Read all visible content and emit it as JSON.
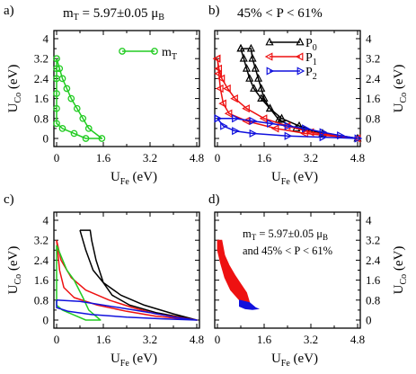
{
  "colors": {
    "green": "#22cc22",
    "black": "#000000",
    "red": "#ee1111",
    "blue": "#1111dd"
  },
  "chart_data": [
    {
      "panel": "a)",
      "type": "line",
      "caption": "m_T = 5.97±0.05 μ_B",
      "xlabel": "U_Fe (eV)",
      "ylabel": "U_Co (eV)",
      "xlim": [
        0,
        4.8
      ],
      "ylim": [
        0,
        4
      ],
      "xticks": [
        "0",
        "1.6",
        "3.2",
        "4.8"
      ],
      "yticks": [
        "0",
        "0.8",
        "1.6",
        "2.4",
        "3.2",
        "4"
      ],
      "legend_position": "top-right",
      "series": [
        {
          "name": "m_T",
          "color": "green",
          "marker": "circle",
          "points": [
            [
              0.0,
              3.2
            ],
            [
              0.1,
              2.8
            ],
            [
              0.2,
              2.4
            ],
            [
              0.35,
              2.0
            ],
            [
              0.5,
              1.6
            ],
            [
              0.7,
              1.2
            ],
            [
              0.9,
              0.8
            ],
            [
              1.1,
              0.4
            ],
            [
              1.55,
              0.0
            ],
            [
              1.0,
              0.0
            ],
            [
              0.6,
              0.2
            ],
            [
              0.2,
              0.4
            ],
            [
              0.0,
              0.6
            ],
            [
              0.0,
              1.2
            ],
            [
              0.0,
              1.8
            ],
            [
              0.0,
              2.4
            ],
            [
              0.0,
              2.8
            ],
            [
              0.0,
              3.2
            ]
          ]
        }
      ]
    },
    {
      "panel": "b)",
      "type": "line",
      "caption": "45% < P < 61%",
      "xlabel": "U_Fe (eV)",
      "ylabel": "U_Co (eV)",
      "xlim": [
        0,
        4.8
      ],
      "ylim": [
        0,
        4
      ],
      "xticks": [
        "0",
        "1.6",
        "3.2",
        "4.8"
      ],
      "yticks": [
        "0",
        "0.8",
        "1.6",
        "2.4",
        "3.2",
        "4"
      ],
      "legend_position": "top-right",
      "series": [
        {
          "name": "P_0",
          "color": "black",
          "marker": "triangle-up",
          "points": [
            [
              0.8,
              3.6
            ],
            [
              0.9,
              3.2
            ],
            [
              1.0,
              2.8
            ],
            [
              1.1,
              2.4
            ],
            [
              1.25,
              2.0
            ],
            [
              1.5,
              1.6
            ],
            [
              1.8,
              1.2
            ],
            [
              2.2,
              0.8
            ],
            [
              2.8,
              0.5
            ],
            [
              3.6,
              0.2
            ],
            [
              4.8,
              0.0
            ],
            [
              2.7,
              0.4
            ],
            [
              2.1,
              0.75
            ],
            [
              1.8,
              1.2
            ],
            [
              1.6,
              1.6
            ],
            [
              1.5,
              2.0
            ],
            [
              1.4,
              2.4
            ],
            [
              1.3,
              2.8
            ],
            [
              1.2,
              3.2
            ],
            [
              1.15,
              3.6
            ],
            [
              0.8,
              3.6
            ]
          ]
        },
        {
          "name": "P_1",
          "color": "red",
          "marker": "triangle-left",
          "points": [
            [
              0.0,
              3.2
            ],
            [
              0.05,
              2.8
            ],
            [
              0.15,
              2.4
            ],
            [
              0.35,
              2.0
            ],
            [
              0.6,
              1.6
            ],
            [
              1.0,
              1.2
            ],
            [
              1.6,
              0.8
            ],
            [
              2.4,
              0.5
            ],
            [
              3.2,
              0.25
            ],
            [
              4.8,
              0.0
            ],
            [
              3.0,
              0.2
            ],
            [
              2.0,
              0.4
            ],
            [
              1.0,
              0.7
            ],
            [
              0.4,
              1.0
            ],
            [
              0.2,
              1.4
            ],
            [
              0.1,
              2.0
            ],
            [
              0.05,
              2.6
            ],
            [
              0.0,
              3.2
            ]
          ]
        },
        {
          "name": "P_2",
          "color": "blue",
          "marker": "triangle-right",
          "points": [
            [
              0.0,
              0.8
            ],
            [
              0.6,
              0.8
            ],
            [
              1.2,
              0.7
            ],
            [
              1.8,
              0.6
            ],
            [
              2.4,
              0.5
            ],
            [
              3.0,
              0.4
            ],
            [
              3.6,
              0.25
            ],
            [
              4.2,
              0.12
            ],
            [
              4.8,
              0.0
            ],
            [
              3.6,
              0.05
            ],
            [
              2.4,
              0.1
            ],
            [
              1.2,
              0.2
            ],
            [
              0.6,
              0.3
            ],
            [
              0.2,
              0.5
            ],
            [
              0.0,
              0.8
            ]
          ]
        }
      ]
    },
    {
      "panel": "c)",
      "type": "line",
      "xlabel": "U_Fe (eV)",
      "ylabel": "U_Co (eV)",
      "xlim": [
        0,
        4.8
      ],
      "ylim": [
        0,
        4
      ],
      "xticks": [
        "0",
        "1.6",
        "3.2",
        "4.8"
      ],
      "yticks": [
        "0",
        "0.8",
        "1.6",
        "2.4",
        "3.2",
        "4"
      ],
      "series": [
        {
          "color": "black",
          "points": [
            [
              0.8,
              3.6
            ],
            [
              1.0,
              2.8
            ],
            [
              1.25,
              2.0
            ],
            [
              1.6,
              1.5
            ],
            [
              2.2,
              1.0
            ],
            [
              3.0,
              0.6
            ],
            [
              4.0,
              0.25
            ],
            [
              4.8,
              0.0
            ],
            [
              3.4,
              0.3
            ],
            [
              2.5,
              0.6
            ],
            [
              1.9,
              1.0
            ],
            [
              1.6,
              1.5
            ],
            [
              1.35,
              2.4
            ],
            [
              1.2,
              3.2
            ],
            [
              1.15,
              3.6
            ],
            [
              0.8,
              3.6
            ]
          ]
        },
        {
          "color": "red",
          "points": [
            [
              0.0,
              3.2
            ],
            [
              0.15,
              2.4
            ],
            [
              0.5,
              1.7
            ],
            [
              1.0,
              1.2
            ],
            [
              1.8,
              0.8
            ],
            [
              2.6,
              0.5
            ],
            [
              3.4,
              0.25
            ],
            [
              4.8,
              0.0
            ],
            [
              3.4,
              0.15
            ],
            [
              2.4,
              0.35
            ],
            [
              1.4,
              0.6
            ],
            [
              0.6,
              0.9
            ],
            [
              0.25,
              1.3
            ],
            [
              0.1,
              2.0
            ],
            [
              0.0,
              3.2
            ]
          ]
        },
        {
          "color": "green",
          "points": [
            [
              0.0,
              3.0
            ],
            [
              0.35,
              2.0
            ],
            [
              0.6,
              1.6
            ],
            [
              0.9,
              0.9
            ],
            [
              1.1,
              0.4
            ],
            [
              1.5,
              0.0
            ],
            [
              1.0,
              0.0
            ],
            [
              0.6,
              0.2
            ],
            [
              0.2,
              0.4
            ],
            [
              0.0,
              0.6
            ],
            [
              0.0,
              3.0
            ]
          ]
        },
        {
          "color": "blue",
          "points": [
            [
              0.0,
              0.8
            ],
            [
              0.8,
              0.75
            ],
            [
              1.6,
              0.6
            ],
            [
              2.4,
              0.45
            ],
            [
              3.2,
              0.3
            ],
            [
              4.0,
              0.12
            ],
            [
              4.8,
              0.0
            ],
            [
              3.6,
              0.05
            ],
            [
              2.4,
              0.12
            ],
            [
              1.2,
              0.22
            ],
            [
              0.4,
              0.35
            ],
            [
              0.0,
              0.5
            ],
            [
              0.0,
              0.8
            ]
          ]
        }
      ]
    },
    {
      "panel": "d)",
      "type": "area",
      "xlabel": "U_Fe (eV)",
      "ylabel": "U_Co (eV)",
      "xlim": [
        0,
        4.8
      ],
      "ylim": [
        0,
        4
      ],
      "xticks": [
        "0",
        "1.6",
        "3.2",
        "4.8"
      ],
      "yticks": [
        "0",
        "0.8",
        "1.6",
        "2.4",
        "3.2",
        "4"
      ],
      "annotation": [
        "m_T = 5.97±0.05 μ_B",
        "and 45% < P < 61%"
      ],
      "regions": [
        {
          "color": "red",
          "points": [
            [
              0.0,
              3.2
            ],
            [
              0.15,
              3.2
            ],
            [
              0.25,
              2.6
            ],
            [
              0.4,
              2.2
            ],
            [
              0.6,
              1.8
            ],
            [
              0.8,
              1.45
            ],
            [
              1.0,
              1.1
            ],
            [
              1.1,
              0.7
            ],
            [
              0.75,
              0.8
            ],
            [
              0.45,
              1.2
            ],
            [
              0.25,
              1.7
            ],
            [
              0.1,
              2.3
            ],
            [
              0.0,
              2.8
            ]
          ]
        },
        {
          "color": "blue",
          "points": [
            [
              0.75,
              0.8
            ],
            [
              1.1,
              0.7
            ],
            [
              1.3,
              0.5
            ],
            [
              1.4,
              0.45
            ],
            [
              1.2,
              0.42
            ],
            [
              0.95,
              0.45
            ],
            [
              0.75,
              0.55
            ]
          ]
        }
      ]
    }
  ]
}
